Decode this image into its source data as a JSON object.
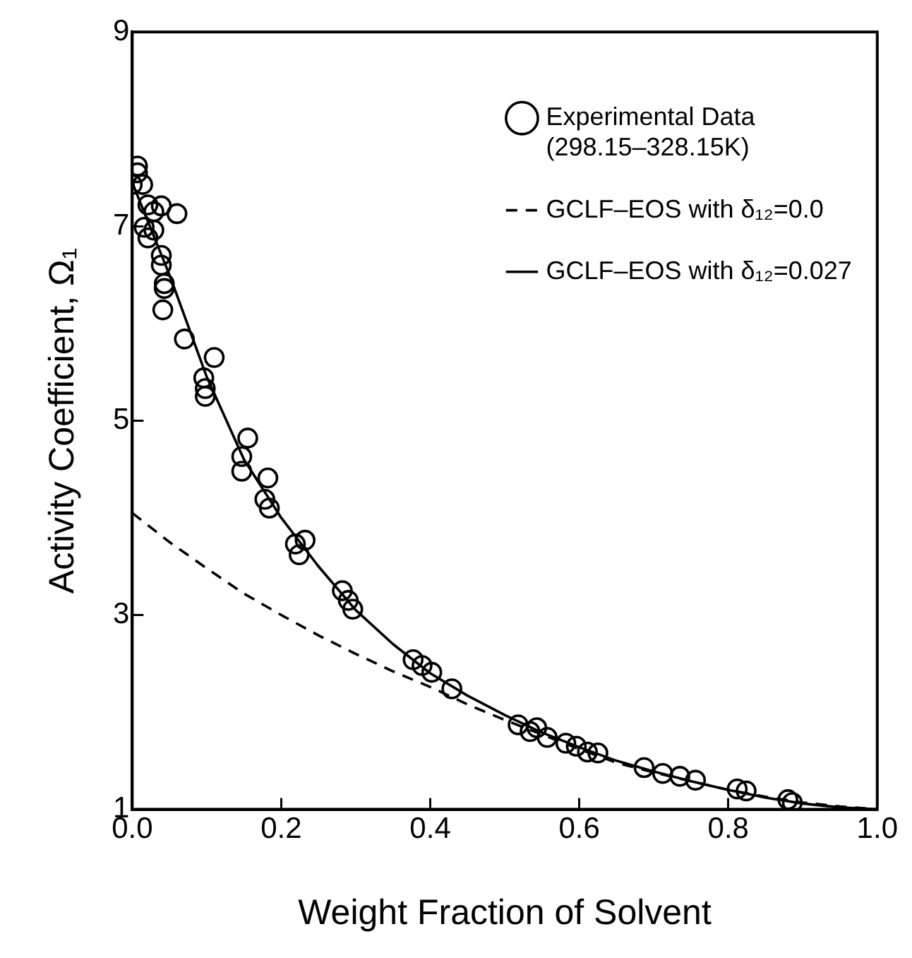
{
  "chart_data": {
    "type": "scatter",
    "xlabel": "Weight Fraction of Solvent",
    "ylabel": "Activity Coefficient, Ω₁",
    "xlim": [
      0,
      1
    ],
    "xticks": [
      {
        "value": 0,
        "label": "0.0"
      },
      0.2,
      0.4,
      0.6,
      0.8,
      {
        "value": 1,
        "label": "1.0"
      }
    ],
    "ylim": [
      1,
      9
    ],
    "yticks": [
      1,
      3,
      5,
      7,
      9
    ],
    "grid": false,
    "legend": "top right",
    "series": [
      {
        "name": "Experimental Data\n(298.15–328.15K)",
        "marker": "circle",
        "color": "#000000",
        "x": [
          0.007,
          0.007,
          0,
          0.014,
          0.021,
          0.039,
          0.06,
          0.029,
          0.016,
          0.029,
          0.021,
          0.039,
          0.039,
          0.043,
          0.043,
          0.041,
          0.07,
          0.11,
          0.096,
          0.098,
          0.098,
          0.155,
          0.147,
          0.147,
          0.182,
          0.178,
          0.184,
          0.232,
          0.219,
          0.224,
          0.282,
          0.29,
          0.296,
          0.377,
          0.389,
          0.402,
          0.429,
          0.518,
          0.534,
          0.543,
          0.557,
          0.582,
          0.596,
          0.611,
          0.625,
          0.687,
          0.712,
          0.735,
          0.756,
          0.812,
          0.824,
          0.88,
          0.886
        ],
        "values": [
          7.62,
          7.55,
          7.43,
          7.43,
          7.22,
          7.21,
          7.13,
          7.15,
          6.99,
          6.96,
          6.88,
          6.7,
          6.6,
          6.41,
          6.36,
          6.14,
          5.84,
          5.65,
          5.44,
          5.33,
          5.25,
          4.82,
          4.63,
          4.48,
          4.41,
          4.19,
          4.1,
          3.77,
          3.73,
          3.62,
          3.25,
          3.15,
          3.06,
          2.54,
          2.48,
          2.41,
          2.24,
          1.87,
          1.8,
          1.84,
          1.74,
          1.68,
          1.65,
          1.59,
          1.58,
          1.43,
          1.37,
          1.34,
          1.3,
          1.21,
          1.19,
          1.1,
          1.07
        ]
      },
      {
        "name": "GCLF–EOS with δ₁₂=0.0",
        "type": "line",
        "line_style": "dashed",
        "marker": "none",
        "color": "#000000",
        "x": [
          0,
          0.05,
          0.1,
          0.15,
          0.2,
          0.25,
          0.3,
          0.35,
          0.4,
          0.45,
          0.5,
          0.55,
          0.6,
          0.65,
          0.7,
          0.75,
          0.8,
          0.85,
          0.9,
          0.95,
          1
        ],
        "values": [
          4.05,
          3.75,
          3.48,
          3.22,
          3,
          2.79,
          2.6,
          2.42,
          2.26,
          2.08,
          1.92,
          1.77,
          1.62,
          1.48,
          1.38,
          1.29,
          1.2,
          1.13,
          1.07,
          1.03,
          1
        ]
      },
      {
        "name": "GCLF–EOS with δ₁₂=0.027",
        "type": "line",
        "line_style": "solid",
        "marker": "none",
        "color": "#000000",
        "x": [
          0,
          0.05,
          0.1,
          0.15,
          0.2,
          0.25,
          0.3,
          0.35,
          0.4,
          0.45,
          0.5,
          0.55,
          0.6,
          0.65,
          0.7,
          0.75,
          0.8,
          0.85,
          0.9,
          0.95,
          1
        ],
        "values": [
          7.45,
          6.5,
          5.45,
          4.6,
          4,
          3.5,
          3.05,
          2.7,
          2.4,
          2.17,
          1.97,
          1.79,
          1.64,
          1.5,
          1.39,
          1.29,
          1.2,
          1.12,
          1.06,
          1.02,
          1
        ]
      }
    ]
  }
}
